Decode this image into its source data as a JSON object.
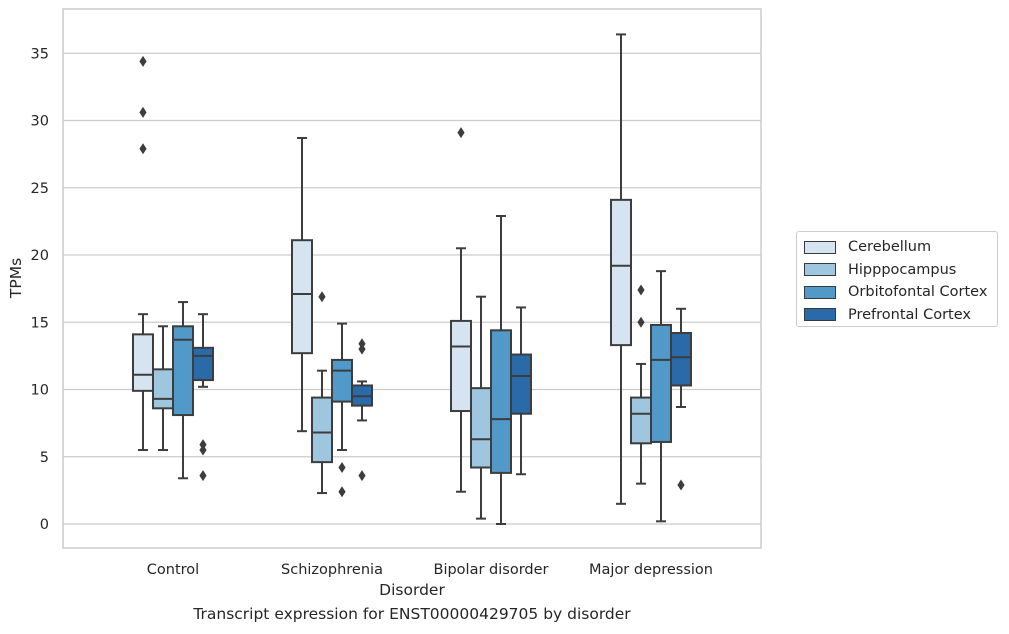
{
  "chart_data": {
    "type": "box",
    "xlabel": "Disorder",
    "ylabel": "TPMs",
    "caption": "Transcript expression for ENST00000429705 by disorder",
    "ylim": [
      -1.8,
      37.8
    ],
    "yticks": [
      0,
      5,
      10,
      15,
      20,
      25,
      30,
      35
    ],
    "grid": "horizontal",
    "legend_position": "right",
    "categories": [
      "Control",
      "Schizophrenia",
      "Bipolar disorder",
      "Major depression"
    ],
    "series": [
      {
        "name": "Cerebellum",
        "color": "#d6e4f2",
        "boxes": [
          {
            "min": 5.5,
            "q1": 9.9,
            "median": 11.1,
            "q3": 14.1,
            "max": 15.6,
            "outliers": [
              27.9,
              30.6,
              34.4
            ]
          },
          {
            "min": 6.9,
            "q1": 12.7,
            "median": 17.1,
            "q3": 21.1,
            "max": 28.7,
            "outliers": []
          },
          {
            "min": 2.4,
            "q1": 8.4,
            "median": 13.2,
            "q3": 15.1,
            "max": 20.5,
            "outliers": [
              29.1
            ]
          },
          {
            "min": 1.5,
            "q1": 13.3,
            "median": 19.2,
            "q3": 24.1,
            "max": 36.4,
            "outliers": []
          }
        ]
      },
      {
        "name": "Hipppocampus",
        "color": "#9ec6de",
        "boxes": [
          {
            "min": 5.5,
            "q1": 8.6,
            "median": 9.3,
            "q3": 11.5,
            "max": 14.7,
            "outliers": []
          },
          {
            "min": 2.3,
            "q1": 4.6,
            "median": 6.8,
            "q3": 9.4,
            "max": 11.4,
            "outliers": [
              16.9
            ]
          },
          {
            "min": 0.4,
            "q1": 4.2,
            "median": 6.3,
            "q3": 10.1,
            "max": 16.9,
            "outliers": []
          },
          {
            "min": 3.0,
            "q1": 6.0,
            "median": 8.2,
            "q3": 9.4,
            "max": 11.9,
            "outliers": [
              15.0,
              17.4
            ]
          }
        ]
      },
      {
        "name": "Orbitofontal Cortex",
        "color": "#5199c8",
        "boxes": [
          {
            "min": 3.4,
            "q1": 8.1,
            "median": 13.7,
            "q3": 14.7,
            "max": 16.5,
            "outliers": []
          },
          {
            "min": 5.5,
            "q1": 9.1,
            "median": 11.4,
            "q3": 12.2,
            "max": 14.9,
            "outliers": [
              2.4,
              4.2
            ]
          },
          {
            "min": 0.0,
            "q1": 3.8,
            "median": 7.8,
            "q3": 14.4,
            "max": 22.9,
            "outliers": []
          },
          {
            "min": 0.2,
            "q1": 6.1,
            "median": 12.2,
            "q3": 14.8,
            "max": 18.8,
            "outliers": []
          }
        ]
      },
      {
        "name": "Prefrontal Cortex",
        "color": "#2b6aa8",
        "boxes": [
          {
            "min": 10.2,
            "q1": 10.7,
            "median": 12.5,
            "q3": 13.1,
            "max": 15.6,
            "outliers": [
              3.6,
              5.5,
              5.9
            ]
          },
          {
            "min": 7.7,
            "q1": 8.8,
            "median": 9.5,
            "q3": 10.3,
            "max": 10.6,
            "outliers": [
              3.6,
              13.0,
              13.4
            ]
          },
          {
            "min": 3.7,
            "q1": 8.2,
            "median": 11.0,
            "q3": 12.6,
            "max": 16.1,
            "outliers": []
          },
          {
            "min": 8.7,
            "q1": 10.3,
            "median": 12.4,
            "q3": 14.2,
            "max": 16.0,
            "outliers": [
              2.9
            ]
          }
        ]
      }
    ]
  }
}
